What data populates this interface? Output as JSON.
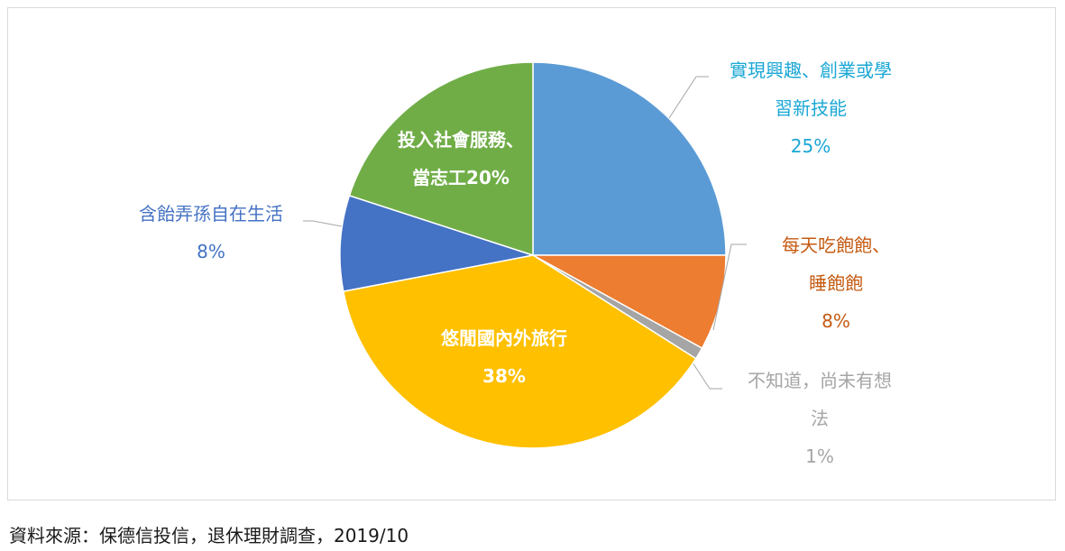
{
  "chart_data": {
    "type": "pie",
    "start_angle_deg": 0,
    "direction": "clockwise",
    "slices": [
      {
        "lines": [
          "實現興趣、創業或學",
          "習新技能",
          "25%"
        ],
        "value": 25,
        "color": "#5b9bd5",
        "label_color": "#1aa7d5",
        "label_position": "outside"
      },
      {
        "lines": [
          "每天吃飽飽、",
          "睡飽飽",
          "8%"
        ],
        "value": 8,
        "color": "#ed7d31",
        "label_color": "#c55a11",
        "label_position": "outside"
      },
      {
        "lines": [
          "不知道，尚未有想",
          "法",
          "1%"
        ],
        "value": 1,
        "color": "#a5a5a5",
        "label_color": "#a5a5a5",
        "label_position": "outside"
      },
      {
        "lines": [
          "悠閒國內外旅行",
          "38%"
        ],
        "value": 38,
        "color": "#ffc000",
        "label_color": "#ffffff",
        "label_position": "inside"
      },
      {
        "lines": [
          "含飴弄孫自在生活",
          "8%"
        ],
        "value": 8,
        "color": "#4472c4",
        "label_color": "#4472c4",
        "label_position": "outside"
      },
      {
        "lines": [
          "投入社會服務、",
          "當志工20%"
        ],
        "value": 20,
        "color": "#70ad47",
        "label_color": "#ffffff",
        "label_position": "inside"
      }
    ]
  },
  "source_note": "資料來源：保德信投信，退休理財調查，2019/10"
}
